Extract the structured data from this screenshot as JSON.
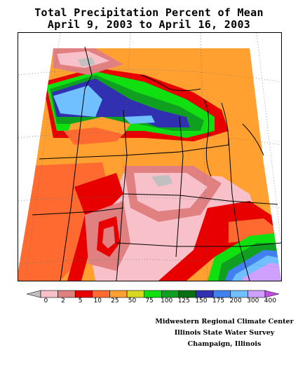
{
  "title_line1": "Total Precipitation Percent of Mean",
  "title_line2": "April 9, 2003 to April 16, 2003",
  "legend": {
    "labels": [
      "0",
      "2",
      "5",
      "10",
      "25",
      "50",
      "75",
      "100",
      "125",
      "150",
      "175",
      "200",
      "300",
      "400"
    ],
    "colors": [
      "#c0c0c0",
      "#f8c0c8",
      "#e08080",
      "#e80000",
      "#ff6a30",
      "#ffa030",
      "#d8d820",
      "#10e010",
      "#10a020",
      "#087010",
      "#3030b0",
      "#4080f0",
      "#70c0ff",
      "#d0a0ff",
      "#c050e0"
    ]
  },
  "credits": {
    "line1": "Midwestern Regional Climate Center",
    "line2": "Illinois State Water Survey",
    "line3": "Champaign, Illinois"
  }
}
